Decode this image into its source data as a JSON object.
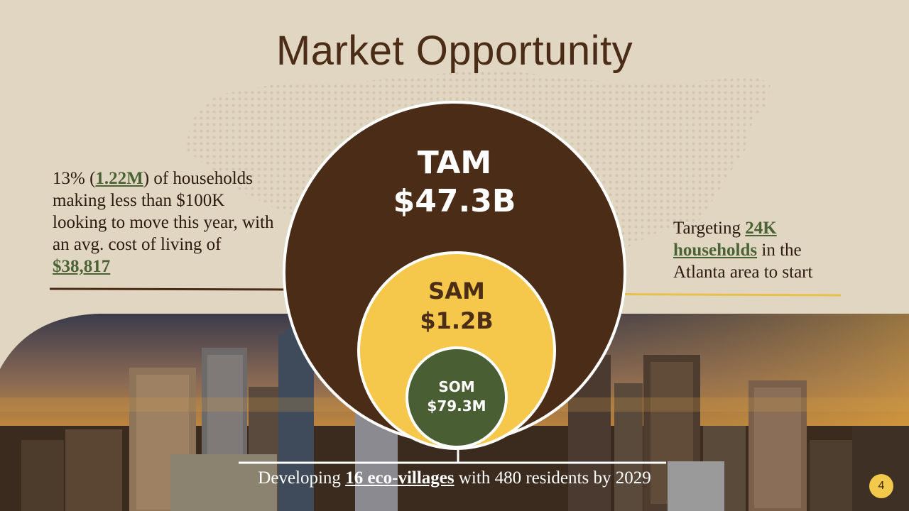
{
  "slide": {
    "title": "Market Opportunity",
    "page_number": "4"
  },
  "left_callout": {
    "prefix": "13% (",
    "highlight1": "1.22M",
    "mid": ") of households making less than $100K looking to move this year, with an avg. cost of living of ",
    "highlight2": "$38,817"
  },
  "right_callout": {
    "prefix": "Targeting ",
    "highlight": "24K households",
    "suffix": " in the Atlanta area to start"
  },
  "circles": {
    "tam": {
      "label": "TAM",
      "value": "$47.3B"
    },
    "sam": {
      "label": "SAM",
      "value": "$1.2B"
    },
    "som": {
      "label": "SOM",
      "value": "$79.3M"
    }
  },
  "bottom_caption": {
    "prefix": "Developing ",
    "highlight": "16 eco-villages",
    "suffix": " with 480 residents by 2029"
  },
  "colors": {
    "background": "#e0d6c2",
    "tam": "#4a2c17",
    "sam": "#f5c84c",
    "som": "#4a5e34",
    "accent_line": "#e8c04a"
  }
}
